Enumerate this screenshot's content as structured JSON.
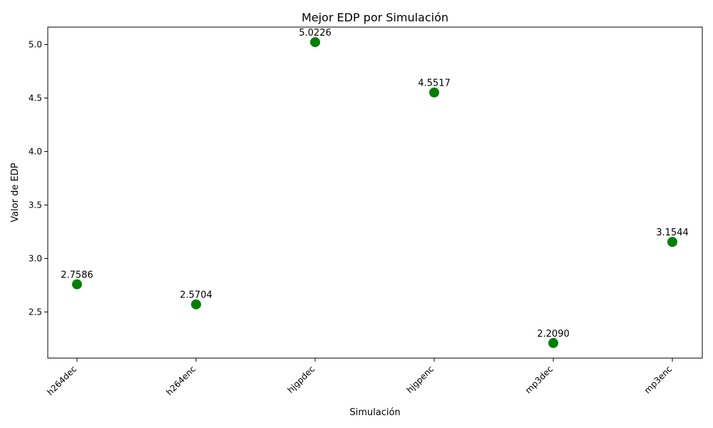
{
  "chart_data": {
    "type": "scatter",
    "title": "Mejor EDP por Simulación",
    "xlabel": "Simulación",
    "ylabel": "Valor de EDP",
    "categories": [
      "h264dec",
      "h264enc",
      "hjgpdec",
      "hjgpenc",
      "mp3dec",
      "mp3enc"
    ],
    "values": [
      2.7586,
      2.5704,
      5.0226,
      4.5517,
      2.209,
      3.1544
    ],
    "data_labels": [
      "2.7586",
      "2.5704",
      "5.0226",
      "4.5517",
      "2.2090",
      "3.1544"
    ],
    "yticks": [
      2.5,
      3.0,
      3.5,
      4.0,
      4.5,
      5.0
    ],
    "ytick_labels": [
      "2.5",
      "3.0",
      "3.5",
      "4.0",
      "4.5",
      "5.0"
    ],
    "ylim": [
      2.0684,
      5.1632
    ],
    "grid": false,
    "legend": "none",
    "marker_color": "#008000"
  }
}
